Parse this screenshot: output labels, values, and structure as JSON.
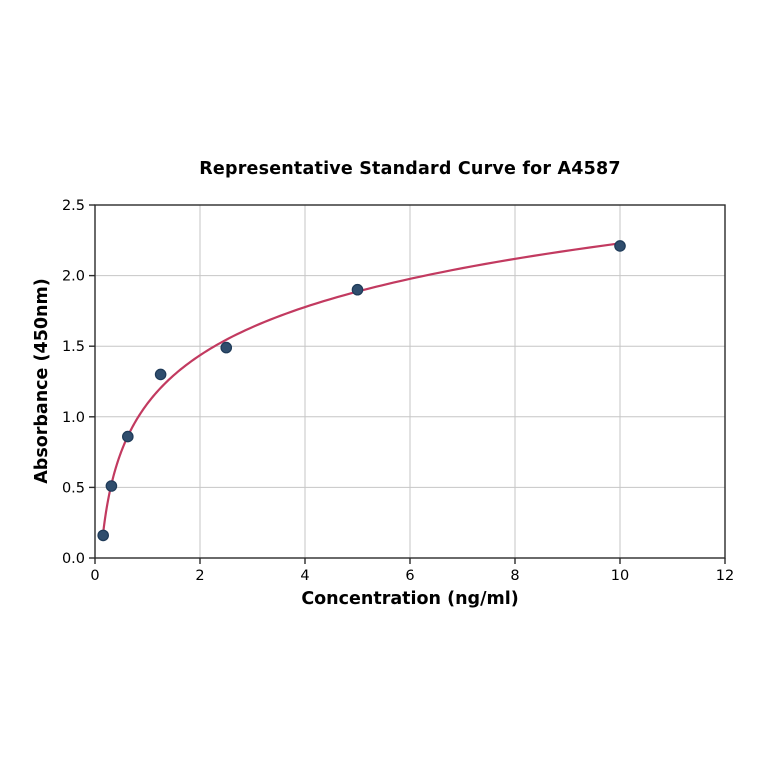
{
  "chart_data": {
    "type": "scatter",
    "title": "Representative Standard Curve for A4587",
    "xlabel": "Concentration (ng/ml)",
    "ylabel": "Absorbance (450nm)",
    "xlim": [
      0,
      12
    ],
    "ylim": [
      0.0,
      2.5
    ],
    "x_ticks": [
      0,
      2,
      4,
      6,
      8,
      10,
      12
    ],
    "y_ticks": [
      0.0,
      0.5,
      1.0,
      1.5,
      2.0,
      2.5
    ],
    "grid": true,
    "legend": "none",
    "points": [
      {
        "x": 0.156,
        "y": 0.16
      },
      {
        "x": 0.3125,
        "y": 0.51
      },
      {
        "x": 0.625,
        "y": 0.86
      },
      {
        "x": 1.25,
        "y": 1.3
      },
      {
        "x": 2.5,
        "y": 1.49
      },
      {
        "x": 5,
        "y": 1.9
      },
      {
        "x": 10,
        "y": 2.21
      }
    ],
    "fit_curve": {
      "model": "logarithmic",
      "x_start": 0.156,
      "x_end": 10
    },
    "colors": {
      "line": "#c23a60",
      "marker_fill": "#2f4d6d",
      "marker_edge": "#1e3a58",
      "grid": "#c6c6c6",
      "axis": "#2b2b2b",
      "text": "#000000"
    }
  }
}
